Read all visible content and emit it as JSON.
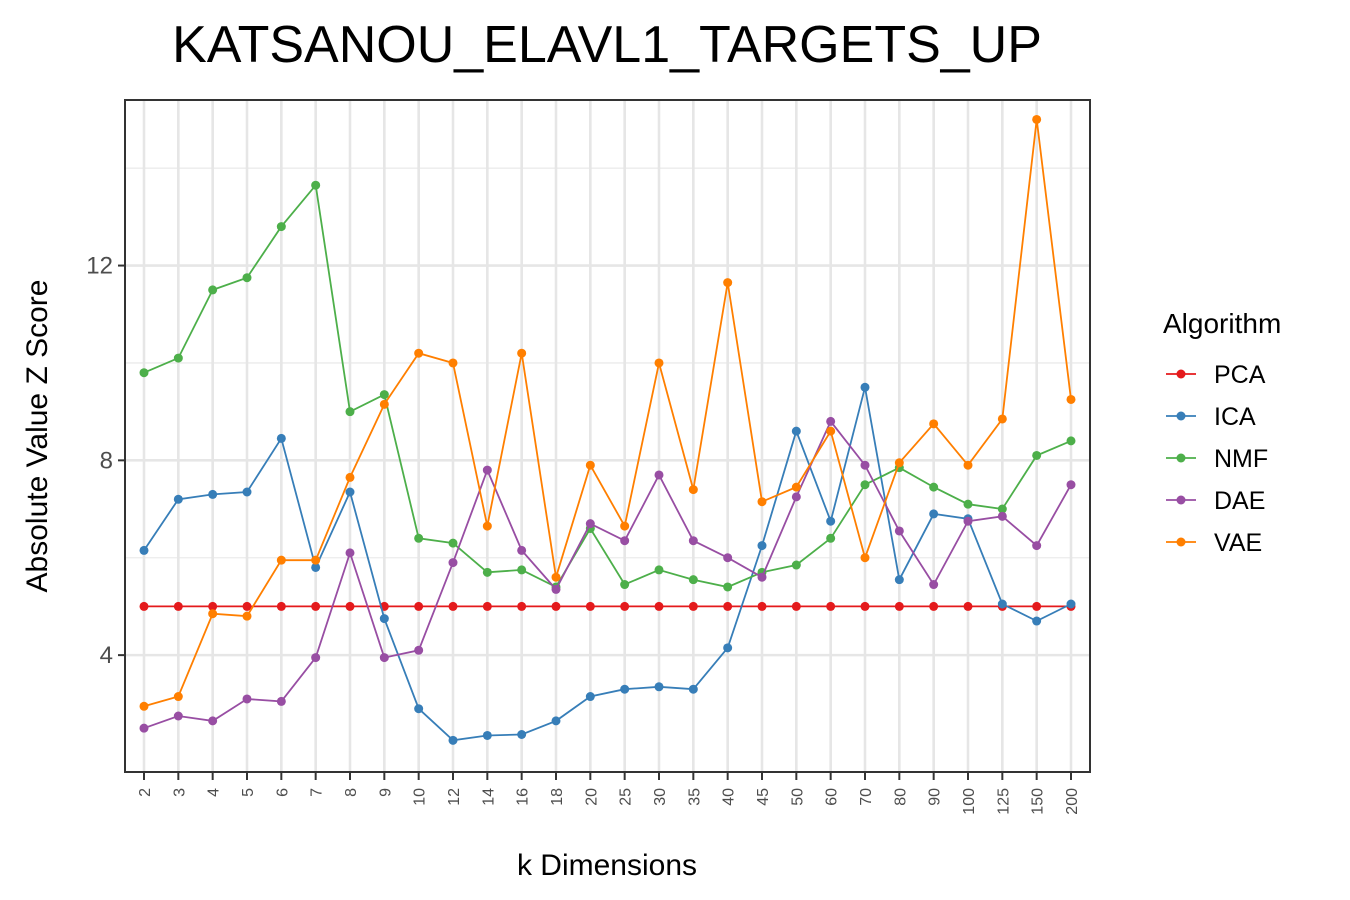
{
  "chart_data": {
    "type": "line",
    "title": "KATSANOU_ELAVL1_TARGETS_UP",
    "xlabel": "k Dimensions",
    "ylabel": "Absolute Value Z Score",
    "categories": [
      "2",
      "3",
      "4",
      "5",
      "6",
      "7",
      "8",
      "9",
      "10",
      "12",
      "14",
      "16",
      "18",
      "20",
      "25",
      "30",
      "35",
      "40",
      "45",
      "50",
      "60",
      "70",
      "80",
      "90",
      "100",
      "125",
      "150",
      "200"
    ],
    "y_ticks": [
      4,
      8,
      12
    ],
    "y_tick_labels": [
      "4",
      "8",
      "12"
    ],
    "ylim": [
      1.6,
      15.4
    ],
    "grid": true,
    "legend": {
      "title": "Algorithm",
      "position": "right"
    },
    "series": [
      {
        "name": "PCA",
        "color": "#e41a1c",
        "values": [
          5.0,
          5.0,
          5.0,
          5.0,
          5.0,
          5.0,
          5.0,
          5.0,
          5.0,
          5.0,
          5.0,
          5.0,
          5.0,
          5.0,
          5.0,
          5.0,
          5.0,
          5.0,
          5.0,
          5.0,
          5.0,
          5.0,
          5.0,
          5.0,
          5.0,
          5.0,
          5.0,
          5.0
        ]
      },
      {
        "name": "ICA",
        "color": "#377eb8",
        "values": [
          6.15,
          7.2,
          7.3,
          7.35,
          8.45,
          5.8,
          7.35,
          4.75,
          2.9,
          2.25,
          2.35,
          2.37,
          2.65,
          3.15,
          3.3,
          3.35,
          3.3,
          4.15,
          6.25,
          8.6,
          6.75,
          9.5,
          5.55,
          6.9,
          6.8,
          5.05,
          4.7,
          5.05
        ]
      },
      {
        "name": "NMF",
        "color": "#4daf4a",
        "values": [
          9.8,
          10.1,
          11.5,
          11.75,
          12.8,
          13.65,
          9.0,
          9.35,
          6.4,
          6.3,
          5.7,
          5.75,
          5.4,
          6.6,
          5.45,
          5.75,
          5.55,
          5.4,
          5.7,
          5.85,
          6.4,
          7.5,
          7.85,
          7.45,
          7.1,
          7.0,
          8.1,
          8.4
        ]
      },
      {
        "name": "DAE",
        "color": "#984ea3",
        "values": [
          2.5,
          2.75,
          2.65,
          3.1,
          3.05,
          3.95,
          6.1,
          3.95,
          4.1,
          5.9,
          7.8,
          6.15,
          5.35,
          6.7,
          6.35,
          7.7,
          6.35,
          6.0,
          5.6,
          7.25,
          8.8,
          7.9,
          6.55,
          5.45,
          6.75,
          6.85,
          6.25,
          7.5
        ]
      },
      {
        "name": "VAE",
        "color": "#ff7f00",
        "values": [
          2.95,
          3.15,
          4.85,
          4.8,
          5.95,
          5.95,
          7.65,
          9.15,
          10.2,
          10.0,
          6.65,
          10.2,
          5.6,
          7.9,
          6.65,
          10.0,
          7.4,
          11.65,
          7.15,
          7.45,
          8.6,
          6.0,
          7.95,
          8.75,
          7.9,
          8.85,
          15.0,
          9.25
        ]
      }
    ]
  }
}
